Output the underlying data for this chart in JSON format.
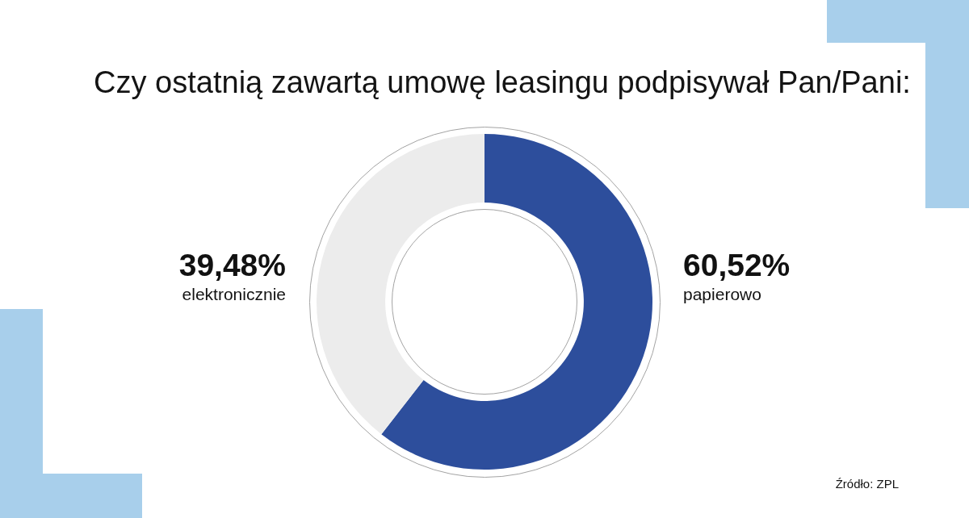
{
  "chart_data": {
    "type": "donut",
    "title": "Czy ostatnią zawartą umowę leasingu podpisywał Pan/Pani:",
    "categories": [
      "papierowo",
      "elektronicznie"
    ],
    "values": [
      60.52,
      39.48
    ],
    "colors": [
      "#2d4e9c",
      "#ececec"
    ],
    "value_labels": [
      "60,52%",
      "39,48%"
    ],
    "annotations": [
      "Źródło: ZPL"
    ]
  }
}
